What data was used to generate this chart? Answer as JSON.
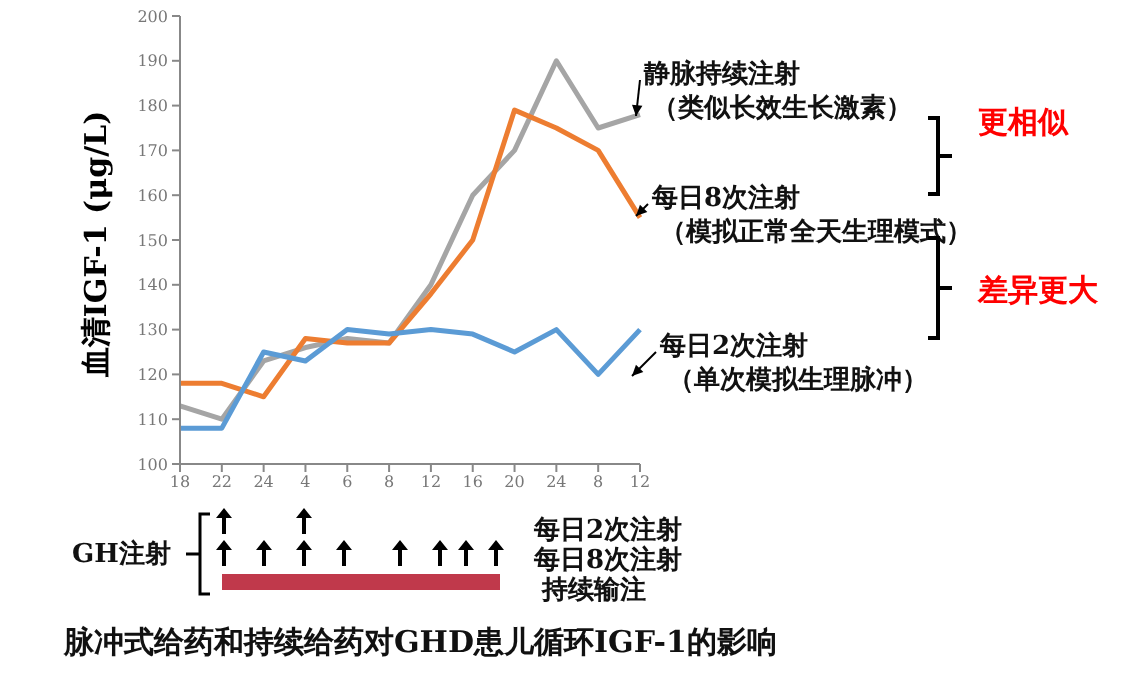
{
  "chart_data": {
    "type": "line",
    "title": "脉冲式给药和持续给药对GHD患儿循环IGF-1的影响",
    "ylabel": "血清IGF-1 (μg/L)",
    "categories": [
      "18",
      "22",
      "24",
      "4",
      "6",
      "8",
      "12",
      "16",
      "20",
      "24",
      "8",
      "12"
    ],
    "series": [
      {
        "name": "静脉持续注射",
        "color": "#a5a5a5",
        "values": [
          113,
          110,
          123,
          126,
          128,
          127,
          140,
          160,
          170,
          190,
          175,
          178
        ]
      },
      {
        "name": "每日8次注射",
        "color": "#ed7d31",
        "values": [
          118,
          118,
          115,
          128,
          127,
          127,
          138,
          150,
          179,
          175,
          170,
          155
        ]
      },
      {
        "name": "每日2次注射",
        "color": "#5b9bd5",
        "values": [
          108,
          108,
          125,
          123,
          130,
          129,
          130,
          129,
          125,
          130,
          120,
          130
        ]
      }
    ],
    "ylim": [
      100,
      200
    ],
    "yticks": [
      100,
      110,
      120,
      130,
      140,
      150,
      160,
      170,
      180,
      190,
      200
    ],
    "marker": "none",
    "line_style": "solid",
    "annotations": [
      "（类似长效生长激素）",
      "（模拟正常全天生理模式）",
      "（单次模拟生理脉冲）",
      "更相似",
      "差异更大",
      "GH注射",
      "每日2次注射",
      "每日8次注射",
      "持续输注"
    ]
  }
}
